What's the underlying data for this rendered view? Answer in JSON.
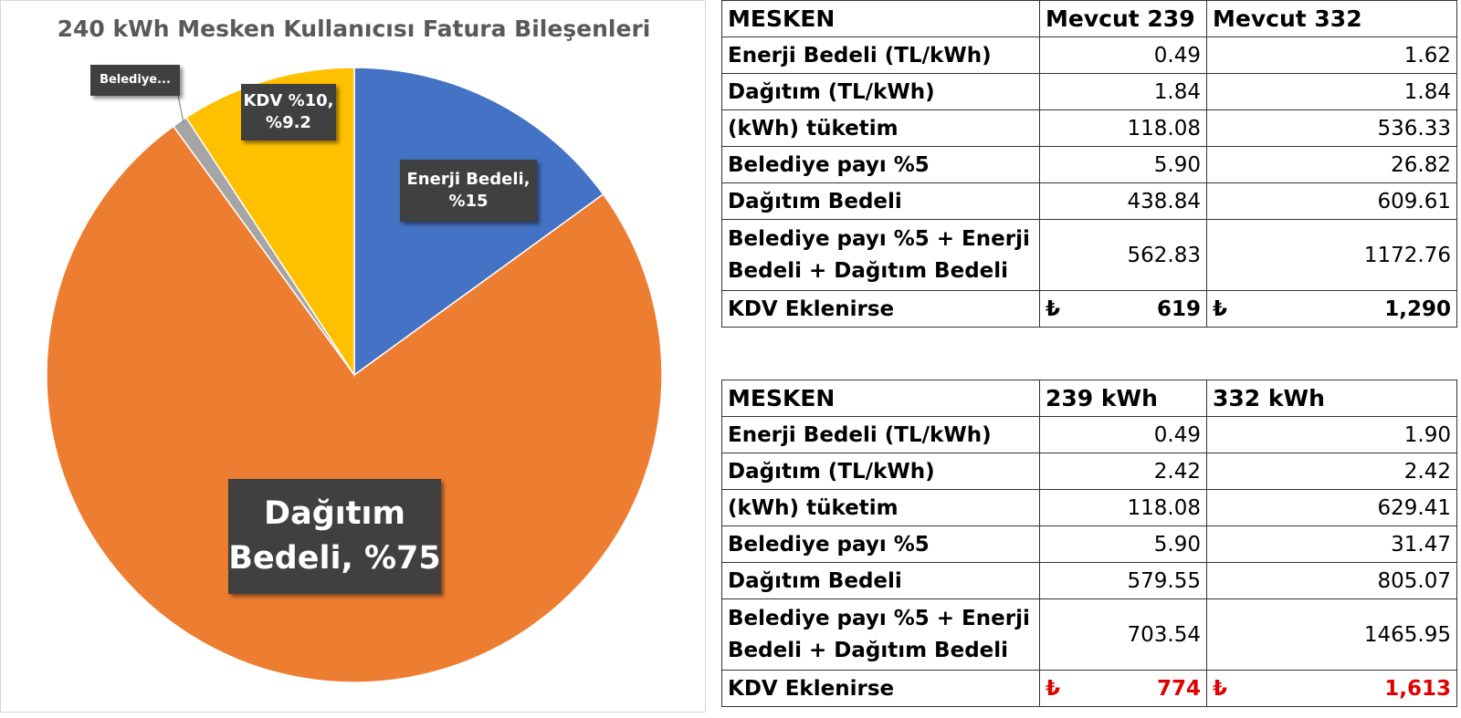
{
  "chart_data": {
    "type": "pie",
    "title": "240 kWh Mesken Kullanıcısı Fatura Bileşenleri",
    "slices": [
      {
        "name": "Enerji Bedeli",
        "value": 15,
        "color": "#4472C4",
        "label": "Enerji Bedeli, %15"
      },
      {
        "name": "Dağıtım Bedeli",
        "value": 75,
        "color": "#ED7D31",
        "label": "Dağıtım Bedeli, %75"
      },
      {
        "name": "Belediye",
        "value": 0.8,
        "color": "#A5A5A5",
        "label": "Belediye..."
      },
      {
        "name": "KDV %10",
        "value": 9.2,
        "color": "#FFC000",
        "label": "KDV %10, %9.2"
      }
    ],
    "legend": "none"
  },
  "tables": [
    {
      "headers": [
        "MESKEN",
        "Mevcut 239",
        "Mevcut 332"
      ],
      "rows": [
        {
          "label": "Enerji Bedeli (TL/kWh)",
          "v1": "0.49",
          "v2": "1.62"
        },
        {
          "label": "Dağıtım (TL/kWh)",
          "v1": "1.84",
          "v2": "1.84"
        },
        {
          "label": "(kWh) tüketim",
          "v1": "118.08",
          "v2": "536.33"
        },
        {
          "label": "Belediye payı %5",
          "v1": "5.90",
          "v2": "26.82"
        },
        {
          "label": "Dağıtım Bedeli",
          "v1": "438.84",
          "v2": "609.61"
        },
        {
          "label": "Belediye payı %5 + Enerji Bedeli + Dağıtım Bedeli",
          "v1": "562.83",
          "v2": "1172.76"
        }
      ],
      "total": {
        "label": "KDV Eklenirse",
        "currency": "₺",
        "v1": "619",
        "v2": "1,290",
        "color": "#000000"
      }
    },
    {
      "headers": [
        "MESKEN",
        "239 kWh",
        "332 kWh"
      ],
      "rows": [
        {
          "label": "Enerji Bedeli (TL/kWh)",
          "v1": "0.49",
          "v2": "1.90"
        },
        {
          "label": "Dağıtım (TL/kWh)",
          "v1": "2.42",
          "v2": "2.42"
        },
        {
          "label": "(kWh) tüketim",
          "v1": "118.08",
          "v2": "629.41"
        },
        {
          "label": "Belediye payı %5",
          "v1": "5.90",
          "v2": "31.47"
        },
        {
          "label": "Dağıtım Bedeli",
          "v1": "579.55",
          "v2": "805.07"
        },
        {
          "label": "Belediye payı %5 + Enerji Bedeli + Dağıtım Bedeli",
          "v1": "703.54",
          "v2": "1465.95"
        }
      ],
      "total": {
        "label": "KDV Eklenirse",
        "currency": "₺",
        "v1": "774",
        "v2": "1,613",
        "color": "#e00000"
      }
    }
  ]
}
